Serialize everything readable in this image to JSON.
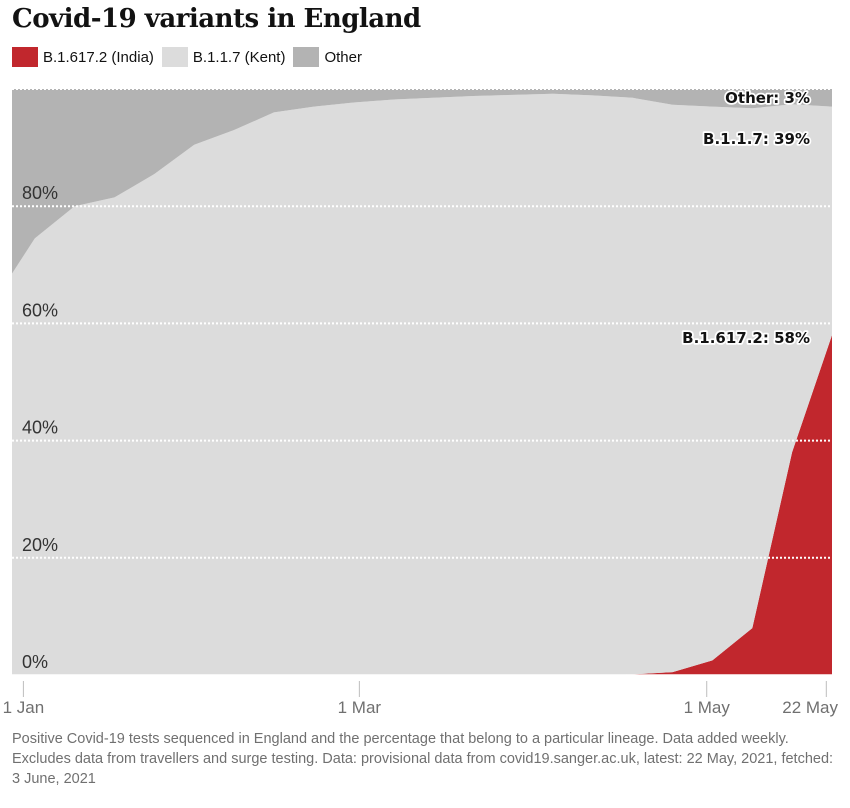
{
  "header": {
    "title": "Covid-19 variants in England"
  },
  "legend": [
    {
      "label": "B.1.617.2 (India)",
      "color": "#c1272d"
    },
    {
      "label": "B.1.1.7 (Kent)",
      "color": "#dcdcdc"
    },
    {
      "label": "Other",
      "color": "#b3b3b3"
    }
  ],
  "footnote": "Positive Covid-19 tests sequenced in England and the percentage that belong to a particular lineage. Data added weekly. Excludes data from travellers and surge testing. Data: provisional data from covid19.sanger.ac.uk, latest: 22 May, 2021, fetched: 3 June, 2021",
  "chart_data": {
    "type": "area",
    "stacked": true,
    "title": "Covid-19 variants in England",
    "xlabel": "",
    "ylabel": "",
    "x_unit": "days since 1 Jan 2021",
    "xlim": [
      -2,
      142
    ],
    "ylim": [
      0,
      100
    ],
    "x": [
      -2,
      2,
      9,
      16,
      23,
      30,
      37,
      44,
      51,
      58,
      65,
      72,
      79,
      86,
      93,
      100,
      107,
      114,
      121,
      128,
      135,
      142
    ],
    "series": [
      {
        "name": "B.1.617.2 (India)",
        "color": "#c1272d",
        "values": [
          0,
          0,
          0,
          0,
          0,
          0,
          0,
          0,
          0,
          0,
          0,
          0,
          0,
          0,
          0,
          0,
          0.1,
          0.5,
          2.5,
          8,
          38,
          58
        ]
      },
      {
        "name": "B.1.1.7 (Kent)",
        "color": "#dcdcdc",
        "values": [
          68.5,
          74.5,
          80,
          81.5,
          85.5,
          90.5,
          93,
          96,
          97,
          97.7,
          98.2,
          98.5,
          98.8,
          99,
          99.2,
          98.9,
          98.4,
          96.8,
          94.5,
          88.7,
          59.4,
          39
        ]
      },
      {
        "name": "Other",
        "color": "#b3b3b3",
        "values": [
          31.5,
          25.5,
          20,
          18.5,
          14.5,
          9.5,
          7,
          4,
          3,
          2.3,
          1.8,
          1.5,
          1.2,
          1,
          0.8,
          1.1,
          1.5,
          2.7,
          3,
          3.3,
          2.6,
          3
        ]
      }
    ],
    "y_ticks": [
      {
        "value": 0,
        "label": "0%"
      },
      {
        "value": 20,
        "label": "20%"
      },
      {
        "value": 40,
        "label": "40%"
      },
      {
        "value": 60,
        "label": "60%"
      },
      {
        "value": 80,
        "label": "80%"
      }
    ],
    "x_ticks": [
      {
        "value": 0,
        "label": "1 Jan"
      },
      {
        "value": 59,
        "label": "1 Mar"
      },
      {
        "value": 120,
        "label": "1 May"
      },
      {
        "value": 141,
        "label": "22 May"
      }
    ],
    "annotations": [
      {
        "label": "Other: 3%",
        "y": 98.5
      },
      {
        "label": "B.1.1.7: 39%",
        "y": 91.5
      },
      {
        "label": "B.1.617.2: 58%",
        "y": 57.5
      }
    ],
    "grid": true
  }
}
